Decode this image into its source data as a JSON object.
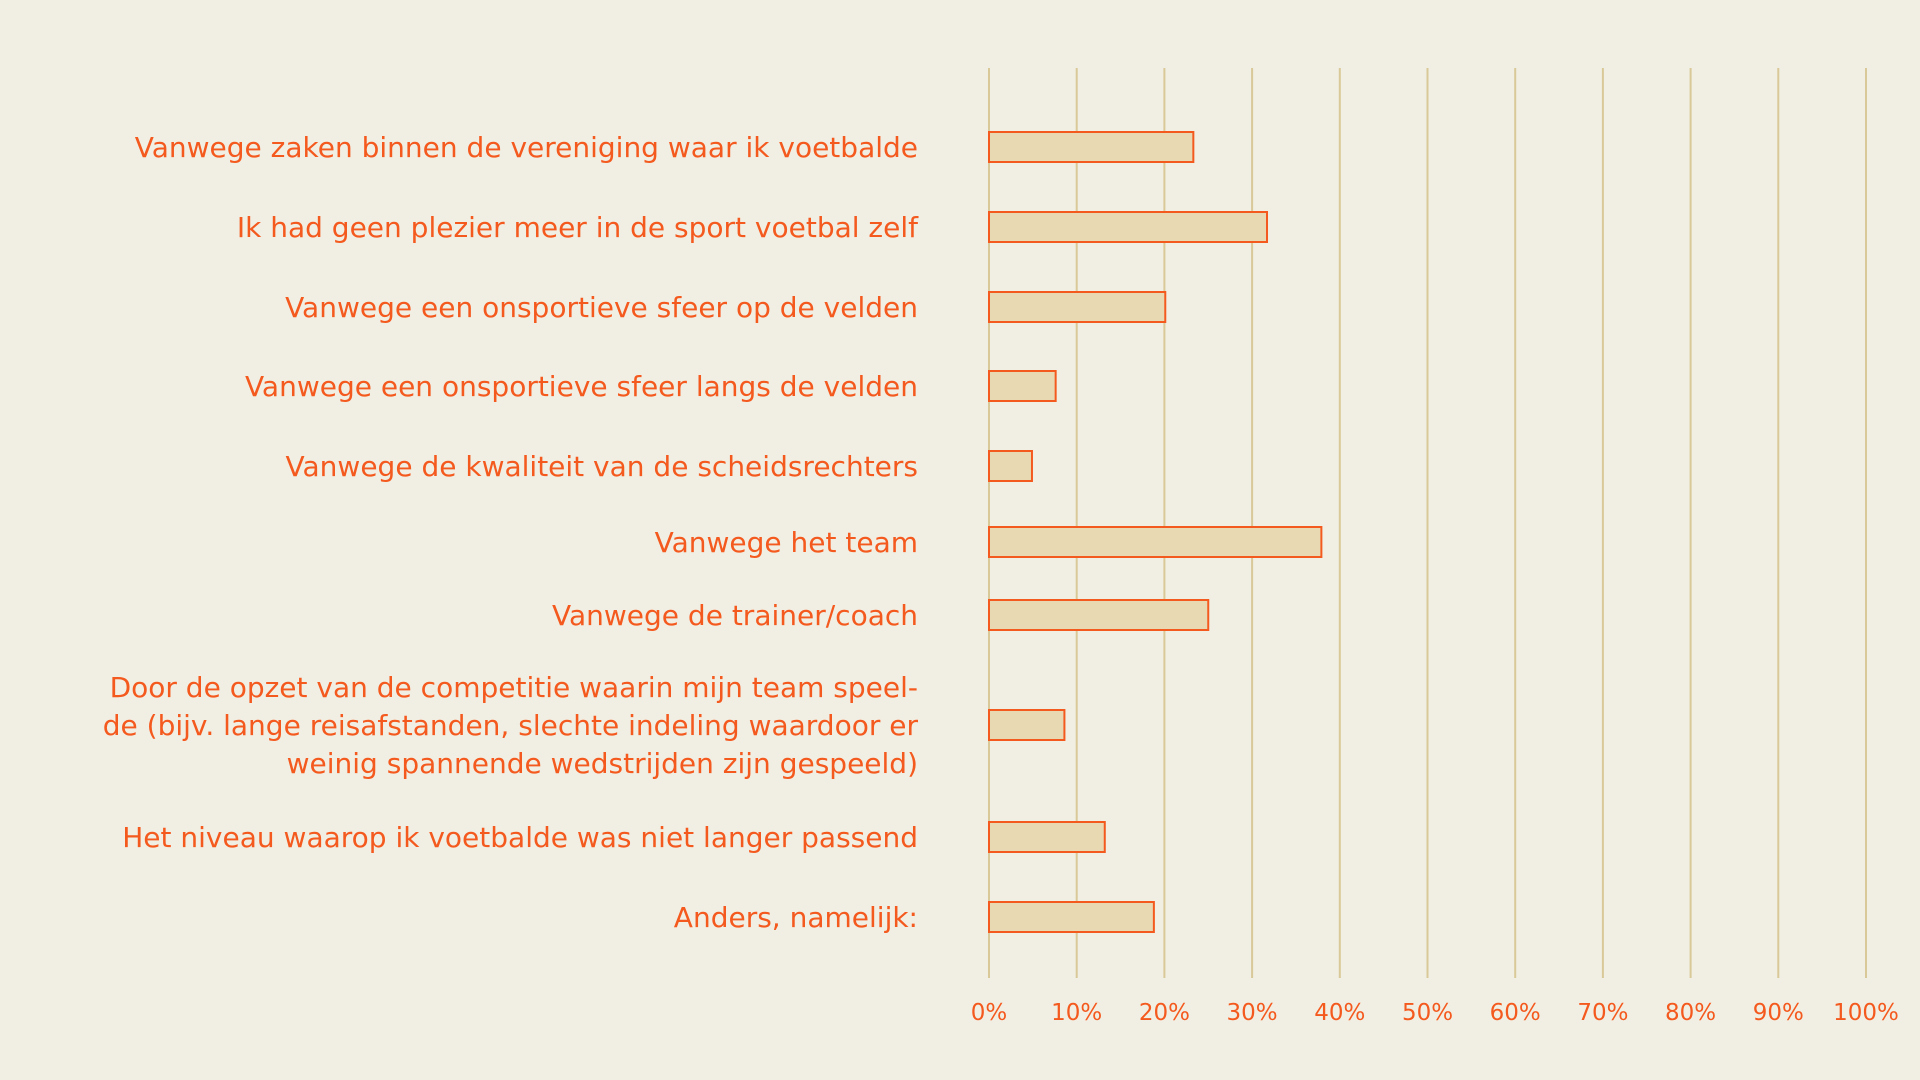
{
  "chart_data": {
    "type": "bar",
    "orientation": "horizontal",
    "categories": [
      [
        "Vanwege zaken binnen de vereniging waar ik voetbalde"
      ],
      [
        "Ik had geen plezier meer in de sport voetbal zelf"
      ],
      [
        "Vanwege een onsportieve sfeer op de velden"
      ],
      [
        "Vanwege een onsportieve sfeer langs de velden"
      ],
      [
        "Vanwege de kwaliteit van de scheidsrechters"
      ],
      [
        "Vanwege het team"
      ],
      [
        "Vanwege de trainer/coach"
      ],
      [
        "Door de opzet van de competitie waarin mijn team speel-",
        "de (bijv. lange reisafstanden, slechte indeling waardoor er",
        "weinig spannende wedstrijden zijn gespeeld)"
      ],
      [
        "Het niveau waarop ik voetbalde was niet langer passend"
      ],
      [
        "Anders, namelijk:"
      ]
    ],
    "values": [
      23.3,
      31.7,
      20.1,
      7.6,
      4.9,
      37.9,
      25.0,
      8.6,
      13.2,
      18.8
    ],
    "xlim": [
      0,
      100
    ],
    "x_ticks": [
      "0%",
      "10%",
      "20%",
      "30%",
      "40%",
      "50%",
      "60%",
      "70%",
      "80%",
      "90%",
      "100%"
    ],
    "grid": "vertical",
    "colors": {
      "background": "#f1efe3",
      "bar_fill": "#e8d9b2",
      "bar_stroke": "#f4591e",
      "grid": "#d9c998",
      "text": "#f4591e"
    }
  }
}
